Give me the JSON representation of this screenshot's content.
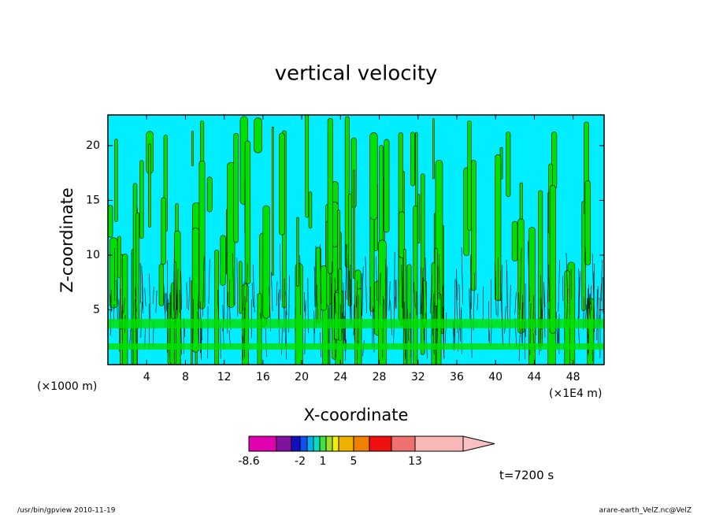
{
  "chart_data": {
    "type": "contour",
    "title": "vertical velocity",
    "x_label": "X-coordinate",
    "y_label": "Z-coordinate",
    "x_unit_left": "(×1000 m)",
    "x_unit_right": "(×1E4 m)",
    "xlim": [
      0,
      51.2
    ],
    "xticks": [
      4,
      8,
      12,
      16,
      20,
      24,
      28,
      32,
      36,
      40,
      44,
      48
    ],
    "ylim": [
      0,
      22.8
    ],
    "yticks": [
      5,
      10,
      15,
      20
    ],
    "colorbar": {
      "colors": [
        "#e000b0",
        "#8010a0",
        "#1010c0",
        "#1050f0",
        "#00b0f0",
        "#00e0c0",
        "#40e040",
        "#a0e020",
        "#f0f000",
        "#f0b000",
        "#f08000",
        "#f01010",
        "#f07070",
        "#f8b8b8"
      ],
      "levels": [
        -8.6,
        null,
        null,
        -2,
        null,
        null,
        1,
        null,
        null,
        null,
        5,
        null,
        null,
        13,
        null
      ]
    },
    "annotation": "t=7200 s",
    "footer_left": "/usr/bin/gpview   2010-11-19",
    "footer_right": "arare-earth_VelZ.nc@VelZ"
  }
}
